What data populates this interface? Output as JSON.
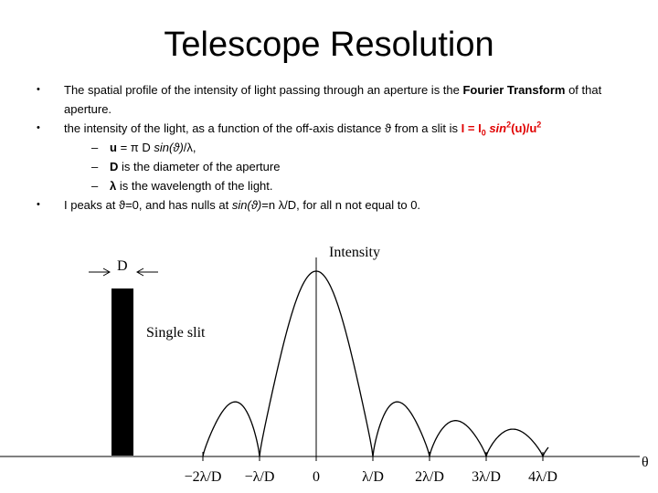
{
  "title": "Telescope Resolution",
  "bullets": [
    {
      "parts": [
        "The spatial profile of the intensity of light passing through an aperture is the ",
        "Fourier Transform",
        " of that aperture."
      ]
    },
    {
      "parts": [
        "the intensity of the light, as a function of the off-axis distance ϑ from a slit is ",
        "I = I",
        "0",
        " sin",
        "2",
        "(u)/u",
        "2"
      ],
      "sub_bullets": [
        {
          "parts": [
            "u",
            " = π D ",
            "sin(ϑ)",
            "/λ,"
          ]
        },
        {
          "parts": [
            "D",
            " is the diameter of the aperture"
          ]
        },
        {
          "parts": [
            "λ",
            " is the wavelength of the light."
          ]
        }
      ]
    },
    {
      "parts": [
        "I peaks at ϑ=0, and has nulls at ",
        "sin(ϑ)",
        "=n λ/D, for all n not equal to 0."
      ]
    }
  ],
  "figure": {
    "aperture_label": "D",
    "slit_label": "Single slit",
    "y_label": "Intensity",
    "x_label": "θ",
    "tick_labels": [
      "−2λ/D",
      "−λ/D",
      "0",
      "λ/D",
      "2λ/D",
      "3λ/D",
      "4λ/D"
    ]
  }
}
